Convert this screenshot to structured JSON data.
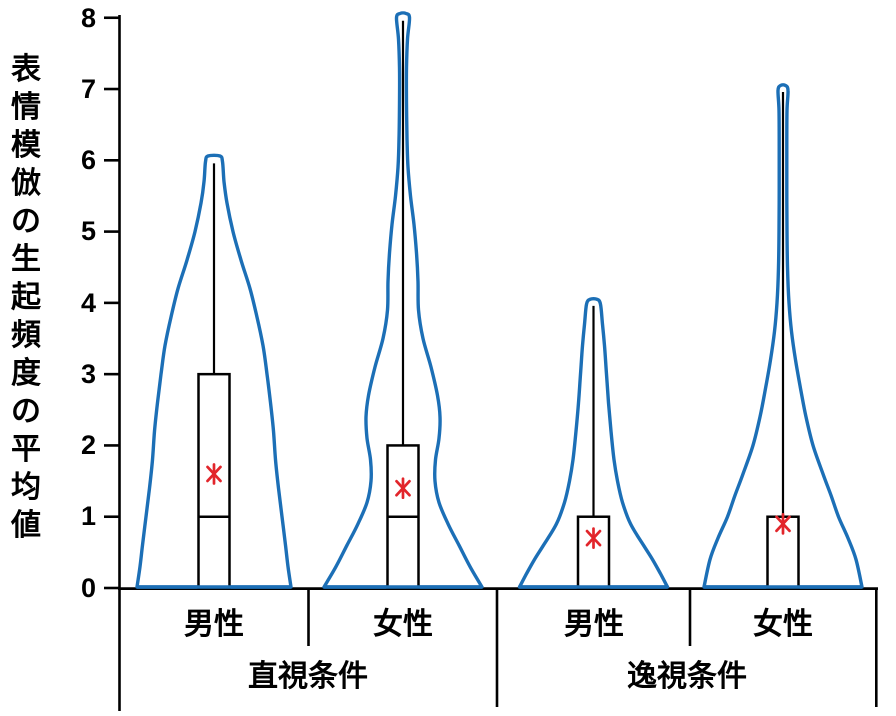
{
  "y_axis": {
    "title": "表情模倣の生起頻度の平均値",
    "labels": [
      "8",
      "7",
      "6",
      "5",
      "4",
      "3",
      "2",
      "1",
      "0"
    ],
    "tick_values": [
      0,
      1,
      2,
      3,
      4,
      5,
      6,
      7,
      8
    ]
  },
  "x_axis": {
    "categories": [
      "男性",
      "女性",
      "男性",
      "女性"
    ],
    "groups": [
      "直視条件",
      "逸視条件"
    ]
  },
  "colors": {
    "violin_outline": "#1C6FB6",
    "box": "#000000",
    "axis": "#000000",
    "mean_marker": "#E2252B"
  },
  "chart_data": {
    "type": "violin",
    "ylabel": "表情模倣の生起頻度の平均値",
    "ylim": [
      0,
      8
    ],
    "yticks": [
      0,
      1,
      2,
      3,
      4,
      5,
      6,
      7,
      8
    ],
    "grid": false,
    "legend": false,
    "groups": [
      "直視条件",
      "逸視条件"
    ],
    "series": [
      {
        "group": "直視条件",
        "category": "男性",
        "max": 6,
        "q3": 3,
        "median": 1,
        "q1": 0,
        "min": 0,
        "mean": 1.6,
        "profile": [
          [
            6.06,
            6
          ],
          [
            5.98,
            8.5
          ],
          [
            5.7,
            10
          ],
          [
            5.4,
            13
          ],
          [
            5.0,
            19
          ],
          [
            4.6,
            27
          ],
          [
            4.2,
            36
          ],
          [
            3.8,
            43
          ],
          [
            3.4,
            49
          ],
          [
            3.0,
            53
          ],
          [
            2.6,
            56.5
          ],
          [
            2.2,
            59.5
          ],
          [
            1.8,
            61.5
          ],
          [
            1.4,
            64.5
          ],
          [
            1.0,
            68
          ],
          [
            0.6,
            71.5
          ],
          [
            0.3,
            74
          ],
          [
            0.0,
            77
          ]
        ]
      },
      {
        "group": "直視条件",
        "category": "女性",
        "max": 8,
        "q3": 2,
        "median": 1,
        "q1": 0,
        "min": 0,
        "mean": 1.4,
        "profile": [
          [
            8.06,
            3
          ],
          [
            8.0,
            6.5
          ],
          [
            7.7,
            4.5
          ],
          [
            7.3,
            3.5
          ],
          [
            6.8,
            3.5
          ],
          [
            6.3,
            4
          ],
          [
            5.9,
            5
          ],
          [
            5.5,
            7.5
          ],
          [
            5.1,
            11
          ],
          [
            4.7,
            13.5
          ],
          [
            4.3,
            15
          ],
          [
            3.9,
            15.5
          ],
          [
            3.5,
            20
          ],
          [
            3.1,
            28
          ],
          [
            2.7,
            34.5
          ],
          [
            2.4,
            37
          ],
          [
            2.1,
            36
          ],
          [
            1.8,
            32.5
          ],
          [
            1.5,
            32
          ],
          [
            1.2,
            36
          ],
          [
            0.9,
            45
          ],
          [
            0.6,
            56
          ],
          [
            0.3,
            67
          ],
          [
            0.0,
            79
          ]
        ]
      },
      {
        "group": "逸視条件",
        "category": "男性",
        "max": 4,
        "q3": 1,
        "median": 1,
        "q1": 0,
        "min": 0,
        "mean": 0.7,
        "profile": [
          [
            4.05,
            3.5
          ],
          [
            3.98,
            7
          ],
          [
            3.7,
            9
          ],
          [
            3.4,
            11
          ],
          [
            3.0,
            13
          ],
          [
            2.6,
            15
          ],
          [
            2.2,
            17.5
          ],
          [
            1.8,
            20.5
          ],
          [
            1.5,
            24
          ],
          [
            1.2,
            29
          ],
          [
            0.9,
            37
          ],
          [
            0.6,
            50
          ],
          [
            0.4,
            59
          ],
          [
            0.2,
            67
          ],
          [
            0.0,
            74
          ]
        ]
      },
      {
        "group": "逸視条件",
        "category": "女性",
        "max": 7,
        "q3": 1,
        "median": 1,
        "q1": 0,
        "min": 0,
        "mean": 0.9,
        "profile": [
          [
            7.05,
            2.5
          ],
          [
            6.98,
            5
          ],
          [
            6.7,
            4
          ],
          [
            6.2,
            3.8
          ],
          [
            5.6,
            3.8
          ],
          [
            5.0,
            4
          ],
          [
            4.5,
            4.5
          ],
          [
            4.0,
            6
          ],
          [
            3.6,
            8.5
          ],
          [
            3.2,
            12.5
          ],
          [
            2.8,
            17.5
          ],
          [
            2.4,
            23
          ],
          [
            2.0,
            30
          ],
          [
            1.6,
            40
          ],
          [
            1.3,
            48
          ],
          [
            1.0,
            55.5
          ],
          [
            0.7,
            65
          ],
          [
            0.4,
            73
          ],
          [
            0.0,
            79
          ]
        ]
      }
    ]
  }
}
